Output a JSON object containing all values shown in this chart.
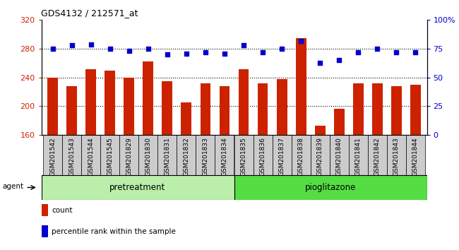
{
  "title": "GDS4132 / 212571_at",
  "categories": [
    "GSM201542",
    "GSM201543",
    "GSM201544",
    "GSM201545",
    "GSM201829",
    "GSM201830",
    "GSM201831",
    "GSM201832",
    "GSM201833",
    "GSM201834",
    "GSM201835",
    "GSM201836",
    "GSM201837",
    "GSM201838",
    "GSM201839",
    "GSM201840",
    "GSM201841",
    "GSM201842",
    "GSM201843",
    "GSM201844"
  ],
  "bar_values": [
    240,
    228,
    252,
    250,
    240,
    262,
    235,
    205,
    232,
    228,
    252,
    232,
    238,
    295,
    173,
    197,
    232,
    232,
    228,
    230
  ],
  "dot_values": [
    75,
    78,
    79,
    75,
    73,
    75,
    70,
    71,
    72,
    71,
    78,
    72,
    75,
    82,
    63,
    65,
    72,
    75,
    72,
    72
  ],
  "bar_color": "#cc2200",
  "dot_color": "#0000cc",
  "ymin": 160,
  "ymax": 320,
  "yticks": [
    160,
    200,
    240,
    280,
    320
  ],
  "y2min": 0,
  "y2max": 100,
  "y2ticks": [
    0,
    25,
    50,
    75,
    100
  ],
  "y2ticklabels": [
    "0",
    "25",
    "50",
    "75",
    "100%"
  ],
  "grid_values": [
    200,
    240,
    280
  ],
  "pretreatment_label": "pretreatment",
  "pioglitazone_label": "pioglitazone",
  "pretreatment_n": 10,
  "pioglitazone_n": 10,
  "agent_label": "agent",
  "legend_count": "count",
  "legend_pct": "percentile rank within the sample",
  "pretreatment_color": "#bbeeaa",
  "pioglitazone_color": "#55dd44",
  "tick_label_bg": "#cccccc",
  "bg_color": "#ffffff"
}
